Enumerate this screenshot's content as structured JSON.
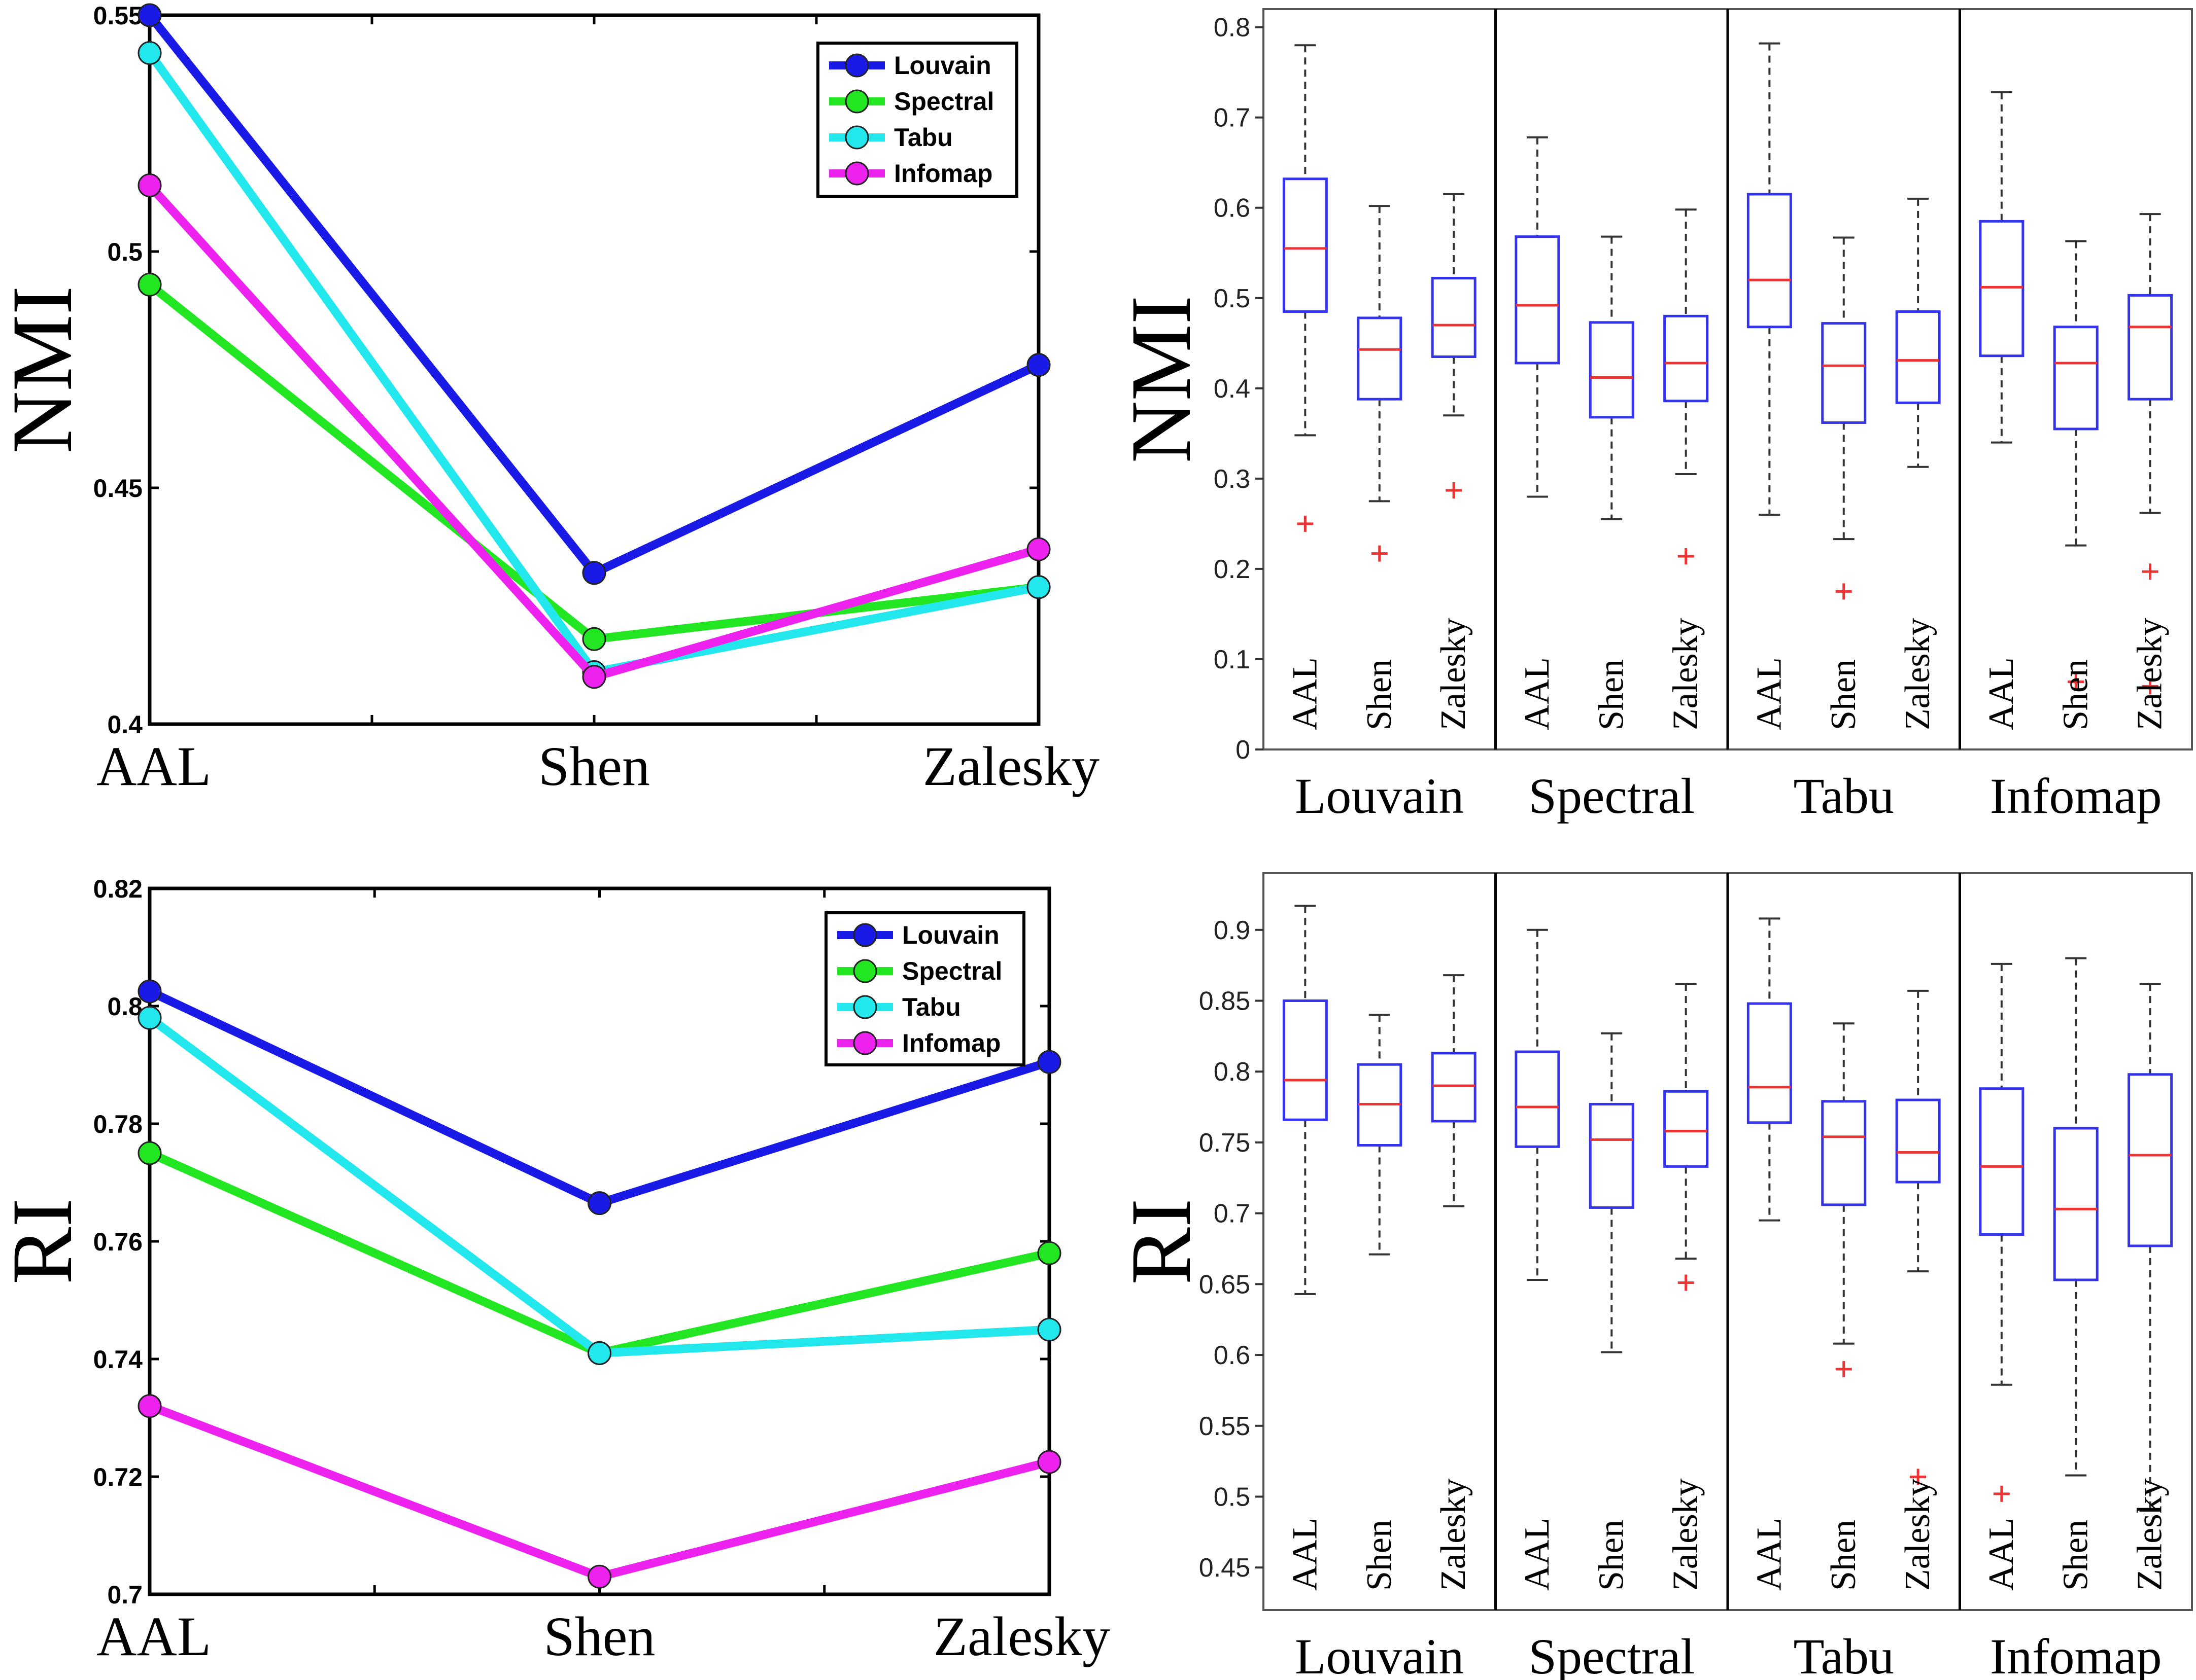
{
  "colors": {
    "louvain": "#1a1ae6",
    "spectral": "#22e622",
    "tabu": "#22e8ee",
    "infomap": "#ee22ee",
    "box": "#3333ee",
    "median": "#ee3333",
    "whisker": "#333333",
    "axis": "#000000"
  },
  "chart_data": [
    {
      "type": "line",
      "ylabel": "NMI",
      "categories": [
        "AAL",
        "Shen",
        "Zalesky"
      ],
      "ylim": [
        0.4,
        0.55
      ],
      "yticks": [
        "0.4",
        "0.45",
        "0.5",
        "0.55"
      ],
      "legend_position": "top-right",
      "series": [
        {
          "name": "Louvain",
          "values": [
            0.55,
            0.432,
            0.476
          ]
        },
        {
          "name": "Spectral",
          "values": [
            0.493,
            0.418,
            0.429
          ]
        },
        {
          "name": "Tabu",
          "values": [
            0.542,
            0.411,
            0.429
          ]
        },
        {
          "name": "Infomap",
          "values": [
            0.514,
            0.41,
            0.437
          ]
        }
      ]
    },
    {
      "type": "boxplot",
      "ylabel": "NMI",
      "ylim": [
        0,
        0.82
      ],
      "yticks": [
        "0",
        "0.1",
        "0.2",
        "0.3",
        "0.4",
        "0.5",
        "0.6",
        "0.7",
        "0.8"
      ],
      "groups": [
        "Louvain",
        "Spectral",
        "Tabu",
        "Infomap"
      ],
      "inner_labels": [
        "AAL",
        "Shen",
        "Zalesky"
      ],
      "boxes": [
        {
          "group": "Louvain",
          "label": "AAL",
          "wlo": 0.348,
          "q1": 0.485,
          "med": 0.555,
          "q3": 0.632,
          "whi": 0.78,
          "outliers": [
            0.25
          ]
        },
        {
          "group": "Louvain",
          "label": "Shen",
          "wlo": 0.275,
          "q1": 0.388,
          "med": 0.443,
          "q3": 0.478,
          "whi": 0.602,
          "outliers": [
            0.217
          ]
        },
        {
          "group": "Louvain",
          "label": "Zalesky",
          "wlo": 0.37,
          "q1": 0.435,
          "med": 0.47,
          "q3": 0.522,
          "whi": 0.615,
          "outliers": [
            0.287
          ]
        },
        {
          "group": "Spectral",
          "label": "AAL",
          "wlo": 0.28,
          "q1": 0.428,
          "med": 0.492,
          "q3": 0.568,
          "whi": 0.678,
          "outliers": []
        },
        {
          "group": "Spectral",
          "label": "Shen",
          "wlo": 0.255,
          "q1": 0.368,
          "med": 0.412,
          "q3": 0.473,
          "whi": 0.568,
          "outliers": []
        },
        {
          "group": "Spectral",
          "label": "Zalesky",
          "wlo": 0.305,
          "q1": 0.386,
          "med": 0.428,
          "q3": 0.48,
          "whi": 0.598,
          "outliers": [
            0.214
          ]
        },
        {
          "group": "Tabu",
          "label": "AAL",
          "wlo": 0.26,
          "q1": 0.468,
          "med": 0.52,
          "q3": 0.615,
          "whi": 0.782,
          "outliers": []
        },
        {
          "group": "Tabu",
          "label": "Shen",
          "wlo": 0.233,
          "q1": 0.362,
          "med": 0.425,
          "q3": 0.472,
          "whi": 0.567,
          "outliers": [
            0.175
          ]
        },
        {
          "group": "Tabu",
          "label": "Zalesky",
          "wlo": 0.313,
          "q1": 0.384,
          "med": 0.431,
          "q3": 0.485,
          "whi": 0.61,
          "outliers": []
        },
        {
          "group": "Infomap",
          "label": "AAL",
          "wlo": 0.34,
          "q1": 0.436,
          "med": 0.512,
          "q3": 0.585,
          "whi": 0.728,
          "outliers": []
        },
        {
          "group": "Infomap",
          "label": "Shen",
          "wlo": 0.226,
          "q1": 0.355,
          "med": 0.428,
          "q3": 0.468,
          "whi": 0.563,
          "outliers": [
            0.075
          ]
        },
        {
          "group": "Infomap",
          "label": "Zalesky",
          "wlo": 0.262,
          "q1": 0.388,
          "med": 0.468,
          "q3": 0.503,
          "whi": 0.593,
          "outliers": [
            0.197,
            0.07
          ]
        }
      ]
    },
    {
      "type": "line",
      "ylabel": "RI",
      "categories": [
        "AAL",
        "Shen",
        "Zalesky"
      ],
      "ylim": [
        0.7,
        0.82
      ],
      "yticks": [
        "0.7",
        "0.72",
        "0.74",
        "0.76",
        "0.78",
        "0.8",
        "0.82"
      ],
      "legend_position": "top-right",
      "series": [
        {
          "name": "Louvain",
          "values": [
            0.8025,
            0.7665,
            0.7905
          ]
        },
        {
          "name": "Spectral",
          "values": [
            0.775,
            0.741,
            0.758
          ]
        },
        {
          "name": "Tabu",
          "values": [
            0.798,
            0.741,
            0.745
          ]
        },
        {
          "name": "Infomap",
          "values": [
            0.732,
            0.703,
            0.7225
          ]
        }
      ]
    },
    {
      "type": "boxplot",
      "ylabel": "RI",
      "ylim": [
        0.42,
        0.94
      ],
      "yticks": [
        "0.45",
        "0.5",
        "0.55",
        "0.6",
        "0.65",
        "0.7",
        "0.75",
        "0.8",
        "0.85",
        "0.9"
      ],
      "groups": [
        "Louvain",
        "Spectral",
        "Tabu",
        "Infomap"
      ],
      "inner_labels": [
        "AAL",
        "Shen",
        "Zalesky"
      ],
      "boxes": [
        {
          "group": "Louvain",
          "label": "AAL",
          "wlo": 0.643,
          "q1": 0.766,
          "med": 0.794,
          "q3": 0.85,
          "whi": 0.917,
          "outliers": []
        },
        {
          "group": "Louvain",
          "label": "Shen",
          "wlo": 0.671,
          "q1": 0.748,
          "med": 0.777,
          "q3": 0.805,
          "whi": 0.84,
          "outliers": []
        },
        {
          "group": "Louvain",
          "label": "Zalesky",
          "wlo": 0.705,
          "q1": 0.765,
          "med": 0.79,
          "q3": 0.813,
          "whi": 0.868,
          "outliers": []
        },
        {
          "group": "Spectral",
          "label": "AAL",
          "wlo": 0.653,
          "q1": 0.747,
          "med": 0.775,
          "q3": 0.814,
          "whi": 0.9,
          "outliers": []
        },
        {
          "group": "Spectral",
          "label": "Shen",
          "wlo": 0.602,
          "q1": 0.704,
          "med": 0.752,
          "q3": 0.777,
          "whi": 0.827,
          "outliers": []
        },
        {
          "group": "Spectral",
          "label": "Zalesky",
          "wlo": 0.668,
          "q1": 0.733,
          "med": 0.758,
          "q3": 0.786,
          "whi": 0.862,
          "outliers": [
            0.651
          ]
        },
        {
          "group": "Tabu",
          "label": "AAL",
          "wlo": 0.695,
          "q1": 0.764,
          "med": 0.789,
          "q3": 0.848,
          "whi": 0.908,
          "outliers": []
        },
        {
          "group": "Tabu",
          "label": "Shen",
          "wlo": 0.608,
          "q1": 0.706,
          "med": 0.754,
          "q3": 0.779,
          "whi": 0.834,
          "outliers": [
            0.59
          ]
        },
        {
          "group": "Tabu",
          "label": "Zalesky",
          "wlo": 0.659,
          "q1": 0.722,
          "med": 0.743,
          "q3": 0.78,
          "whi": 0.857,
          "outliers": [
            0.514
          ]
        },
        {
          "group": "Infomap",
          "label": "AAL",
          "wlo": 0.579,
          "q1": 0.685,
          "med": 0.733,
          "q3": 0.788,
          "whi": 0.876,
          "outliers": [
            0.502
          ]
        },
        {
          "group": "Infomap",
          "label": "Shen",
          "wlo": 0.515,
          "q1": 0.653,
          "med": 0.703,
          "q3": 0.76,
          "whi": 0.88,
          "outliers": []
        },
        {
          "group": "Infomap",
          "label": "Zalesky",
          "wlo": 0.49,
          "q1": 0.677,
          "med": 0.741,
          "q3": 0.798,
          "whi": 0.862,
          "outliers": []
        }
      ]
    }
  ]
}
